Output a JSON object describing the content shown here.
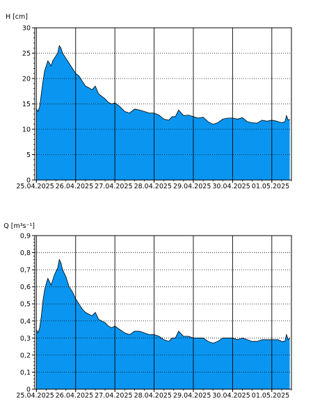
{
  "colors": {
    "area_fill": "#0a96f0",
    "area_stroke": "#000000",
    "grid": "#000000",
    "background": "#ffffff"
  },
  "chart_data": [
    {
      "type": "area",
      "ylabel": "H [cm]",
      "ylim": [
        0,
        30
      ],
      "yticks": [
        0,
        5,
        10,
        15,
        20,
        25,
        30
      ],
      "ytick_labels": [
        "0",
        "5",
        "10",
        "15",
        "20",
        "25",
        "30"
      ],
      "grid": true,
      "xlim": [
        "2025-04-24T23:00",
        "2025-05-01T12:00"
      ],
      "xticks": [
        "25.04.2025",
        "26.04.2025",
        "27.04.2025",
        "28.04.2025",
        "29.04.2025",
        "30.04.2025",
        "01.05.2025"
      ],
      "series": [
        {
          "x": [
            "2025-04-25T00:00",
            "2025-04-25T01:00",
            "2025-04-25T02:00",
            "2025-04-25T03:00",
            "2025-04-25T04:00",
            "2025-04-25T05:00",
            "2025-04-25T06:00",
            "2025-04-25T07:00",
            "2025-04-25T08:00",
            "2025-04-25T09:00",
            "2025-04-25T10:00",
            "2025-04-25T11:00",
            "2025-04-25T13:00",
            "2025-04-25T14:00",
            "2025-04-25T15:00",
            "2025-04-25T16:00",
            "2025-04-25T18:00",
            "2025-04-25T19:00",
            "2025-04-25T20:00",
            "2025-04-25T22:00",
            "2025-04-26T00:00",
            "2025-04-26T02:00",
            "2025-04-26T04:00",
            "2025-04-26T06:00",
            "2025-04-26T08:00",
            "2025-04-26T10:00",
            "2025-04-26T12:00",
            "2025-04-26T14:00",
            "2025-04-26T16:00",
            "2025-04-26T18:00",
            "2025-04-26T20:00",
            "2025-04-26T22:00",
            "2025-04-27T00:00",
            "2025-04-27T03:00",
            "2025-04-27T06:00",
            "2025-04-27T09:00",
            "2025-04-27T12:00",
            "2025-04-27T15:00",
            "2025-04-27T18:00",
            "2025-04-27T21:00",
            "2025-04-28T00:00",
            "2025-04-28T03:00",
            "2025-04-28T06:00",
            "2025-04-28T09:00",
            "2025-04-28T11:00",
            "2025-04-28T13:00",
            "2025-04-28T15:00",
            "2025-04-28T18:00",
            "2025-04-28T21:00",
            "2025-04-29T00:00",
            "2025-04-29T03:00",
            "2025-04-29T06:00",
            "2025-04-29T09:00",
            "2025-04-29T12:00",
            "2025-04-29T15:00",
            "2025-04-29T18:00",
            "2025-04-29T21:00",
            "2025-04-30T00:00",
            "2025-04-30T03:00",
            "2025-04-30T06:00",
            "2025-04-30T09:00",
            "2025-04-30T12:00",
            "2025-04-30T15:00",
            "2025-04-30T18:00",
            "2025-04-30T21:00",
            "2025-05-01T00:00",
            "2025-05-01T03:00",
            "2025-05-01T04:00",
            "2025-05-01T06:00",
            "2025-05-01T08:00",
            "2025-05-01T09:00",
            "2025-05-01T10:00",
            "2025-05-01T11:00"
          ],
          "values": [
            14,
            13.5,
            14.5,
            17,
            19.5,
            21.5,
            22.5,
            23.5,
            23,
            22.5,
            23.5,
            24,
            25,
            26.5,
            26,
            25,
            24,
            23.5,
            23,
            22,
            21,
            20.5,
            19.5,
            18.5,
            18.2,
            17.8,
            18.5,
            17,
            16.5,
            16,
            15.3,
            15,
            15.2,
            14.5,
            13.5,
            13.2,
            14,
            13.8,
            13.5,
            13.2,
            13.2,
            12.8,
            12,
            11.8,
            12.5,
            12.5,
            13.8,
            12.7,
            12.8,
            12.5,
            12.2,
            12.4,
            11.5,
            11,
            11.3,
            12,
            12.2,
            12.2,
            12,
            12.3,
            11.5,
            11.3,
            11.2,
            11.8,
            11.6,
            11.8,
            11.6,
            11.5,
            11.3,
            11.5,
            12.7,
            11.8,
            12
          ]
        }
      ]
    },
    {
      "type": "area",
      "ylabel": "Q [m³s⁻¹]",
      "ylim": [
        0,
        0.9
      ],
      "yticks": [
        0,
        0.1,
        0.2,
        0.3,
        0.4,
        0.5,
        0.6,
        0.7,
        0.8,
        0.9
      ],
      "ytick_labels": [
        "0",
        "0,1",
        "0,2",
        "0,3",
        "0,4",
        "0,5",
        "0,6",
        "0,7",
        "0,8",
        "0,9"
      ],
      "grid": true,
      "xlim": [
        "2025-04-24T23:00",
        "2025-05-01T12:00"
      ],
      "xticks": [
        "25.04.2025",
        "26.04.2025",
        "27.04.2025",
        "28.04.2025",
        "29.04.2025",
        "30.04.2025",
        "01.05.2025"
      ],
      "series": [
        {
          "x": [
            "2025-04-25T00:00",
            "2025-04-25T01:00",
            "2025-04-25T02:00",
            "2025-04-25T03:00",
            "2025-04-25T04:00",
            "2025-04-25T05:00",
            "2025-04-25T06:00",
            "2025-04-25T07:00",
            "2025-04-25T08:00",
            "2025-04-25T09:00",
            "2025-04-25T10:00",
            "2025-04-25T11:00",
            "2025-04-25T13:00",
            "2025-04-25T14:00",
            "2025-04-25T15:00",
            "2025-04-25T16:00",
            "2025-04-25T18:00",
            "2025-04-25T19:00",
            "2025-04-25T20:00",
            "2025-04-25T22:00",
            "2025-04-26T00:00",
            "2025-04-26T02:00",
            "2025-04-26T04:00",
            "2025-04-26T06:00",
            "2025-04-26T08:00",
            "2025-04-26T10:00",
            "2025-04-26T12:00",
            "2025-04-26T14:00",
            "2025-04-26T16:00",
            "2025-04-26T18:00",
            "2025-04-26T20:00",
            "2025-04-26T22:00",
            "2025-04-27T00:00",
            "2025-04-27T03:00",
            "2025-04-27T06:00",
            "2025-04-27T09:00",
            "2025-04-27T12:00",
            "2025-04-27T15:00",
            "2025-04-27T18:00",
            "2025-04-27T21:00",
            "2025-04-28T00:00",
            "2025-04-28T03:00",
            "2025-04-28T06:00",
            "2025-04-28T09:00",
            "2025-04-28T11:00",
            "2025-04-28T13:00",
            "2025-04-28T15:00",
            "2025-04-28T18:00",
            "2025-04-28T21:00",
            "2025-04-29T00:00",
            "2025-04-29T03:00",
            "2025-04-29T06:00",
            "2025-04-29T09:00",
            "2025-04-29T12:00",
            "2025-04-29T15:00",
            "2025-04-29T18:00",
            "2025-04-29T21:00",
            "2025-04-30T00:00",
            "2025-04-30T03:00",
            "2025-04-30T06:00",
            "2025-04-30T09:00",
            "2025-04-30T12:00",
            "2025-04-30T15:00",
            "2025-04-30T18:00",
            "2025-04-30T21:00",
            "2025-05-01T00:00",
            "2025-05-01T03:00",
            "2025-05-01T04:00",
            "2025-05-01T06:00",
            "2025-05-01T08:00",
            "2025-05-01T09:00",
            "2025-05-01T10:00",
            "2025-05-01T11:00"
          ],
          "values": [
            0.35,
            0.33,
            0.36,
            0.43,
            0.52,
            0.58,
            0.62,
            0.65,
            0.63,
            0.61,
            0.64,
            0.67,
            0.71,
            0.76,
            0.74,
            0.7,
            0.66,
            0.63,
            0.6,
            0.57,
            0.53,
            0.5,
            0.47,
            0.45,
            0.44,
            0.43,
            0.45,
            0.41,
            0.4,
            0.39,
            0.37,
            0.36,
            0.37,
            0.35,
            0.33,
            0.32,
            0.34,
            0.34,
            0.33,
            0.32,
            0.32,
            0.31,
            0.29,
            0.28,
            0.3,
            0.3,
            0.34,
            0.31,
            0.31,
            0.3,
            0.3,
            0.3,
            0.28,
            0.27,
            0.28,
            0.3,
            0.3,
            0.3,
            0.29,
            0.3,
            0.29,
            0.28,
            0.28,
            0.29,
            0.29,
            0.29,
            0.29,
            0.29,
            0.28,
            0.28,
            0.32,
            0.29,
            0.3
          ]
        }
      ]
    }
  ]
}
